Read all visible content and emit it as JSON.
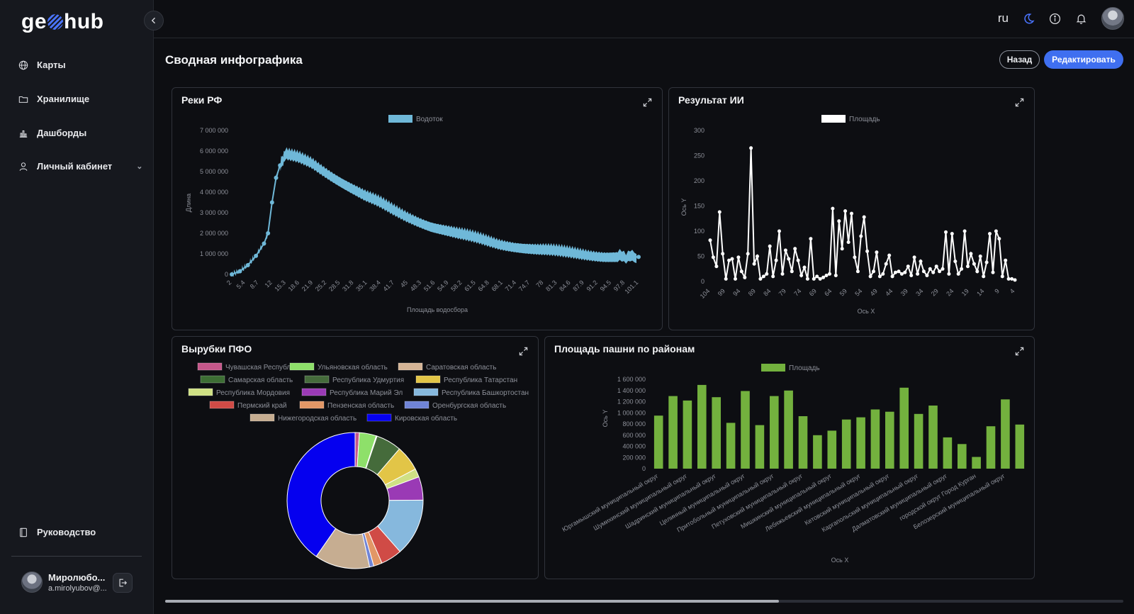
{
  "app": {
    "logo_left": "ge",
    "logo_right": "hub"
  },
  "sidebar": {
    "items": [
      {
        "label": "Карты",
        "icon": "globe-icon"
      },
      {
        "label": "Хранилище",
        "icon": "folder-icon"
      },
      {
        "label": "Дашборды",
        "icon": "bar-chart-icon"
      },
      {
        "label": "Личный кабинет",
        "icon": "user-icon"
      }
    ],
    "guide_label": "Руководство",
    "user_name": "Миролюбо...",
    "user_email": "a.mirolyubov@..."
  },
  "header": {
    "lang": "ru",
    "title": "Сводная инфографика",
    "back_label": "Назад",
    "edit_label": "Редактировать"
  },
  "colors": {
    "accent": "#3f6ff0",
    "rivers": "#6fb8d8",
    "ai": "#ffffff",
    "plowland": "#73b13e"
  },
  "chart_data": [
    {
      "id": "rivers",
      "title": "Реки РФ",
      "type": "line",
      "legend": [
        "Водоток"
      ],
      "xlabel": "Площадь водосбора",
      "ylabel": "Длина",
      "ylim": [
        0,
        7000000
      ],
      "yticks": [
        "0",
        "1 000 000",
        "2 000 000",
        "3 000 000",
        "4 000 000",
        "5 000 000",
        "6 000 000",
        "7 000 000"
      ],
      "xticks": [
        "2",
        "5.4",
        "8.7",
        "12",
        "15.3",
        "18.6",
        "21.9",
        "25.2",
        "28.5",
        "31.8",
        "35.1",
        "38.4",
        "41.7",
        "45",
        "48.3",
        "51.6",
        "54.9",
        "58.2",
        "61.5",
        "64.8",
        "68.1",
        "71.4",
        "74.7",
        "78",
        "81.3",
        "84.6",
        "87.9",
        "91.2",
        "94.5",
        "97.8",
        "101.1"
      ],
      "series": [
        {
          "name": "Водоток",
          "x": [
            2,
            4,
            6,
            8,
            10,
            11,
            12,
            13,
            14,
            15.3,
            18.6,
            21.9,
            25.2,
            28.5,
            31.8,
            35.1,
            38.4,
            41.7,
            45,
            48.3,
            51.6,
            54.9,
            58.2,
            61.5,
            64.8,
            68.1,
            71.4,
            74.7,
            78,
            81.3,
            84.6,
            87.9,
            91.2,
            94.5,
            97.8,
            103
          ],
          "y": [
            0,
            150000,
            450000,
            900000,
            1500000,
            2000000,
            3500000,
            4700000,
            5300000,
            5800000,
            5650000,
            5400000,
            5000000,
            4600000,
            4200000,
            3800000,
            3500000,
            3150000,
            2850000,
            2600000,
            2350000,
            2150000,
            1950000,
            1800000,
            1650000,
            1500000,
            1400000,
            1300000,
            1200000,
            1130000,
            1060000,
            1000000,
            950000,
            900000,
            870000,
            850000
          ]
        }
      ]
    },
    {
      "id": "ai",
      "title": "Результат ИИ",
      "type": "line",
      "legend": [
        "Площадь"
      ],
      "xlabel": "Ось X",
      "ylabel": "Ось Y",
      "ylim": [
        0,
        300
      ],
      "yticks": [
        "0",
        "50",
        "100",
        "150",
        "200",
        "250",
        "300"
      ],
      "xticks": [
        "104",
        "99",
        "94",
        "89",
        "84",
        "79",
        "74",
        "69",
        "64",
        "59",
        "54",
        "49",
        "44",
        "39",
        "34",
        "29",
        "24",
        "19",
        "14",
        "9",
        "4"
      ],
      "series": [
        {
          "name": "Площадь",
          "y": [
            82,
            48,
            30,
            138,
            55,
            5,
            42,
            45,
            5,
            48,
            20,
            8,
            55,
            265,
            35,
            50,
            5,
            10,
            15,
            70,
            10,
            42,
            100,
            15,
            62,
            45,
            20,
            65,
            42,
            12,
            28,
            5,
            85,
            5,
            10,
            5,
            8,
            12,
            15,
            145,
            12,
            120,
            65,
            140,
            78,
            135,
            48,
            20,
            90,
            128,
            60,
            10,
            20,
            58,
            10,
            15,
            35,
            52,
            10,
            18,
            20,
            15,
            18,
            30,
            12,
            48,
            15,
            40,
            20,
            12,
            25,
            18,
            30,
            20,
            25,
            98,
            15,
            95,
            40,
            15,
            25,
            100,
            30,
            55,
            35,
            20,
            50,
            10,
            38,
            95,
            18,
            100,
            85,
            10,
            42,
            5,
            5,
            3
          ]
        }
      ]
    },
    {
      "id": "logging",
      "title": "Вырубки ПФО",
      "type": "pie",
      "categories": [
        "Чувашская Республика",
        "Ульяновская область",
        "Саратовская область",
        "Самарская область",
        "Республика Удмуртия",
        "Республика Татарстан",
        "Республика Мордовия",
        "Республика Марий Эл",
        "Республика Башкортостан",
        "Пермский край",
        "Пензенская область",
        "Оренбургская область",
        "Нижегородская область",
        "Кировская область"
      ],
      "values": [
        1,
        4,
        0.1,
        0.1,
        6,
        6,
        2,
        5.5,
        13.5,
        5,
        2,
        1,
        13,
        40
      ],
      "colors": [
        "#c5578a",
        "#8ee06a",
        "#d4b496",
        "#3d6e34",
        "#456b3b",
        "#e2c547",
        "#cfe084",
        "#9a3ab5",
        "#86b8dd",
        "#d04b46",
        "#e29766",
        "#7084d6",
        "#c6ad91",
        "#0500ef"
      ]
    },
    {
      "id": "plowland",
      "title": "Площадь пашни по районам",
      "type": "bar",
      "legend": [
        "Площадь"
      ],
      "xlabel": "Ось X",
      "ylabel": "Ось Y",
      "ylim": [
        0,
        1600000
      ],
      "yticks": [
        "0",
        "200 000",
        "400 000",
        "600 000",
        "800 000",
        "1 000 000",
        "1 200 000",
        "1 400 000",
        "1 600 000"
      ],
      "categories": [
        "Юргамышский муниципальный округ",
        "",
        "Шумихинский муниципальный округ",
        "",
        "Шадринский муниципальный округ",
        "",
        "Целинный муниципальный округ",
        "",
        "Притобольный муниципальный округ",
        "",
        "Петуховский муниципальный округ",
        "",
        "Мишкинский муниципальный округ",
        "",
        "Лебяжьевский муниципальный округ",
        "",
        "Кетовский муниципальный округ",
        "",
        "Каргапольский муниципальный округ",
        "",
        "Далматовский муниципальный округ",
        "",
        "городской округ Город Курган",
        "",
        "Белозерский муниципальный округ",
        ""
      ],
      "values": [
        950000,
        1300000,
        1220000,
        1500000,
        1280000,
        820000,
        1390000,
        780000,
        1300000,
        1400000,
        940000,
        600000,
        680000,
        880000,
        920000,
        1060000,
        1020000,
        1450000,
        980000,
        1130000,
        560000,
        440000,
        210000,
        760000,
        1240000,
        790000
      ]
    }
  ]
}
